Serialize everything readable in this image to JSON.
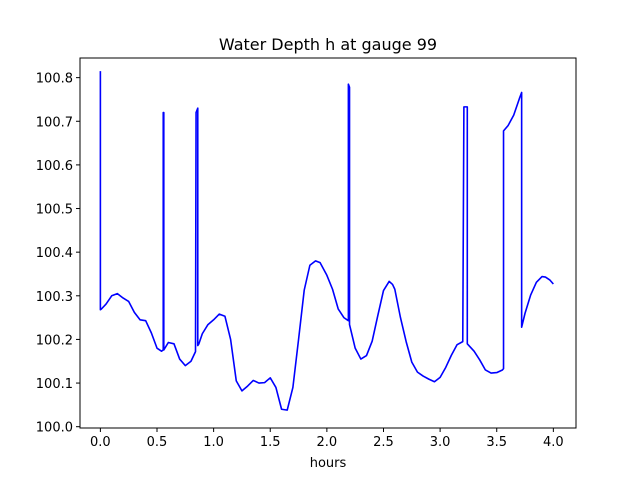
{
  "chart_data": {
    "type": "line",
    "title": "Water Depth h at gauge 99",
    "xlabel": "hours",
    "ylabel": "",
    "xlim": [
      -0.18,
      4.2
    ],
    "ylim": [
      99.997,
      100.845
    ],
    "x_ticks": [
      "0.0",
      "0.5",
      "1.0",
      "1.5",
      "2.0",
      "2.5",
      "3.0",
      "3.5",
      "4.0"
    ],
    "y_ticks": [
      "100.0",
      "100.1",
      "100.2",
      "100.3",
      "100.4",
      "100.5",
      "100.6",
      "100.7",
      "100.8"
    ],
    "grid": false,
    "series": [
      {
        "color": "#0000ff",
        "x": [
          0.0,
          0.0,
          0.01,
          0.05,
          0.1,
          0.15,
          0.2,
          0.25,
          0.3,
          0.35,
          0.4,
          0.45,
          0.5,
          0.54,
          0.555,
          0.555,
          0.56,
          0.56,
          0.6,
          0.65,
          0.7,
          0.75,
          0.8,
          0.84,
          0.845,
          0.86,
          0.86,
          0.87,
          0.9,
          0.95,
          1.0,
          1.05,
          1.1,
          1.15,
          1.2,
          1.25,
          1.3,
          1.35,
          1.4,
          1.45,
          1.5,
          1.55,
          1.6,
          1.65,
          1.7,
          1.75,
          1.8,
          1.85,
          1.9,
          1.94,
          2.0,
          2.05,
          2.1,
          2.15,
          2.19,
          2.19,
          2.2,
          2.2,
          2.25,
          2.3,
          2.35,
          2.4,
          2.45,
          2.5,
          2.55,
          2.58,
          2.6,
          2.65,
          2.7,
          2.75,
          2.8,
          2.85,
          2.9,
          2.95,
          3.0,
          3.05,
          3.1,
          3.15,
          3.2,
          3.21,
          3.21,
          3.24,
          3.24,
          3.3,
          3.35,
          3.4,
          3.45,
          3.5,
          3.55,
          3.56,
          3.56,
          3.6,
          3.65,
          3.7,
          3.72,
          3.72,
          3.75,
          3.8,
          3.85,
          3.9,
          3.93,
          3.97,
          4.0
        ],
        "y": [
          100.815,
          100.268,
          100.27,
          100.281,
          100.3,
          100.305,
          100.295,
          100.287,
          100.262,
          100.245,
          100.243,
          100.215,
          100.18,
          100.173,
          100.176,
          100.72,
          100.72,
          100.176,
          100.193,
          100.19,
          100.155,
          100.14,
          100.15,
          100.172,
          100.72,
          100.73,
          100.186,
          100.19,
          100.213,
          100.234,
          100.245,
          100.258,
          100.253,
          100.2,
          100.105,
          100.082,
          100.093,
          100.106,
          100.1,
          100.101,
          100.112,
          100.09,
          100.04,
          100.038,
          100.09,
          100.2,
          100.313,
          100.37,
          100.38,
          100.376,
          100.347,
          100.315,
          100.27,
          100.25,
          100.243,
          100.785,
          100.778,
          100.234,
          100.18,
          100.155,
          100.163,
          100.196,
          100.255,
          100.312,
          100.333,
          100.326,
          100.315,
          100.25,
          100.195,
          100.148,
          100.125,
          100.116,
          100.109,
          100.103,
          100.113,
          100.136,
          100.164,
          100.188,
          100.195,
          100.733,
          100.733,
          100.733,
          100.19,
          100.173,
          100.153,
          100.13,
          100.123,
          100.124,
          100.13,
          100.133,
          100.678,
          100.69,
          100.714,
          100.752,
          100.766,
          100.228,
          100.26,
          100.302,
          100.331,
          100.344,
          100.343,
          100.336,
          100.327
        ]
      }
    ]
  }
}
